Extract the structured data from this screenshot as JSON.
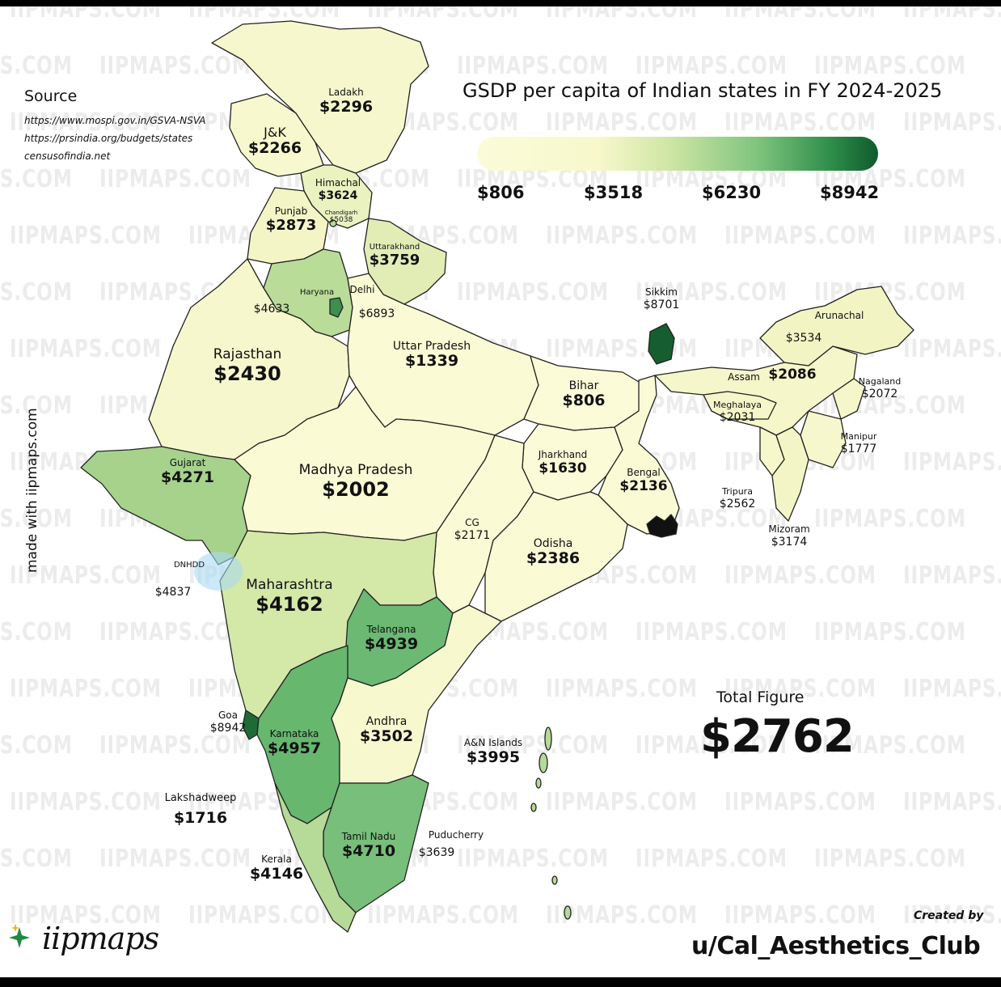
{
  "title": "GSDP per capita of Indian states in FY 2024-2025",
  "source": {
    "heading": "Source",
    "urls": [
      "https://www.mospi.gov.in/GSVA-NSVA",
      "https://prsindia.org/budgets/states",
      "censusofindia.net"
    ]
  },
  "legend": {
    "ticks": [
      "$806",
      "$3518",
      "$6230",
      "$8942"
    ],
    "colors": [
      "#fbfbd8",
      "#f8f8cc",
      "#cfe6a4",
      "#7fc47e",
      "#2f8f4a",
      "#0f5a2d"
    ]
  },
  "side_text": "made with iipmaps.com",
  "watermark": "IIPMAPS.COM",
  "total": {
    "label": "Total Figure",
    "value": "$2762"
  },
  "created_by": {
    "label": "Created by",
    "user": "u/Cal_Aesthetics_Club"
  },
  "logo_text": "iipmaps",
  "regions": [
    {
      "name": "Ladakh",
      "value": "$2296"
    },
    {
      "name": "J&K",
      "value": "$2266"
    },
    {
      "name": "Himachal",
      "value": "$3624"
    },
    {
      "name": "Chandigarh",
      "value": "$5038"
    },
    {
      "name": "Punjab",
      "value": "$2873"
    },
    {
      "name": "Uttarakhand",
      "value": "$3759"
    },
    {
      "name": "Haryana",
      "value": "$4633"
    },
    {
      "name": "Delhi",
      "value": "$6893"
    },
    {
      "name": "Rajasthan",
      "value": "$2430"
    },
    {
      "name": "Uttar Pradesh",
      "value": "$1339"
    },
    {
      "name": "Bihar",
      "value": "$806"
    },
    {
      "name": "Sikkim",
      "value": "$8701"
    },
    {
      "name": "Arunachal",
      "value": "$3534"
    },
    {
      "name": "Assam",
      "value": "$2086"
    },
    {
      "name": "Nagaland",
      "value": "$2072"
    },
    {
      "name": "Meghalaya",
      "value": "$2031"
    },
    {
      "name": "Manipur",
      "value": "$1777"
    },
    {
      "name": "Tripura",
      "value": "$2562"
    },
    {
      "name": "Mizoram",
      "value": "$3174"
    },
    {
      "name": "Gujarat",
      "value": "$4271"
    },
    {
      "name": "Madhya Pradesh",
      "value": "$2002"
    },
    {
      "name": "Jharkhand",
      "value": "$1630"
    },
    {
      "name": "Bengal",
      "value": "$2136"
    },
    {
      "name": "CG",
      "value": "$2171"
    },
    {
      "name": "Odisha",
      "value": "$2386"
    },
    {
      "name": "DNHDD",
      "value": "$4837"
    },
    {
      "name": "Maharashtra",
      "value": "$4162"
    },
    {
      "name": "Telangana",
      "value": "$4939"
    },
    {
      "name": "Goa",
      "value": "$8942"
    },
    {
      "name": "Karnataka",
      "value": "$4957"
    },
    {
      "name": "Andhra",
      "value": "$3502"
    },
    {
      "name": "A&N Islands",
      "value": "$3995"
    },
    {
      "name": "Lakshadweep",
      "value": "$1716"
    },
    {
      "name": "Puducherry",
      "value": "$3639"
    },
    {
      "name": "Tamil Nadu",
      "value": "$4710"
    },
    {
      "name": "Kerala",
      "value": "$4146"
    }
  ]
}
